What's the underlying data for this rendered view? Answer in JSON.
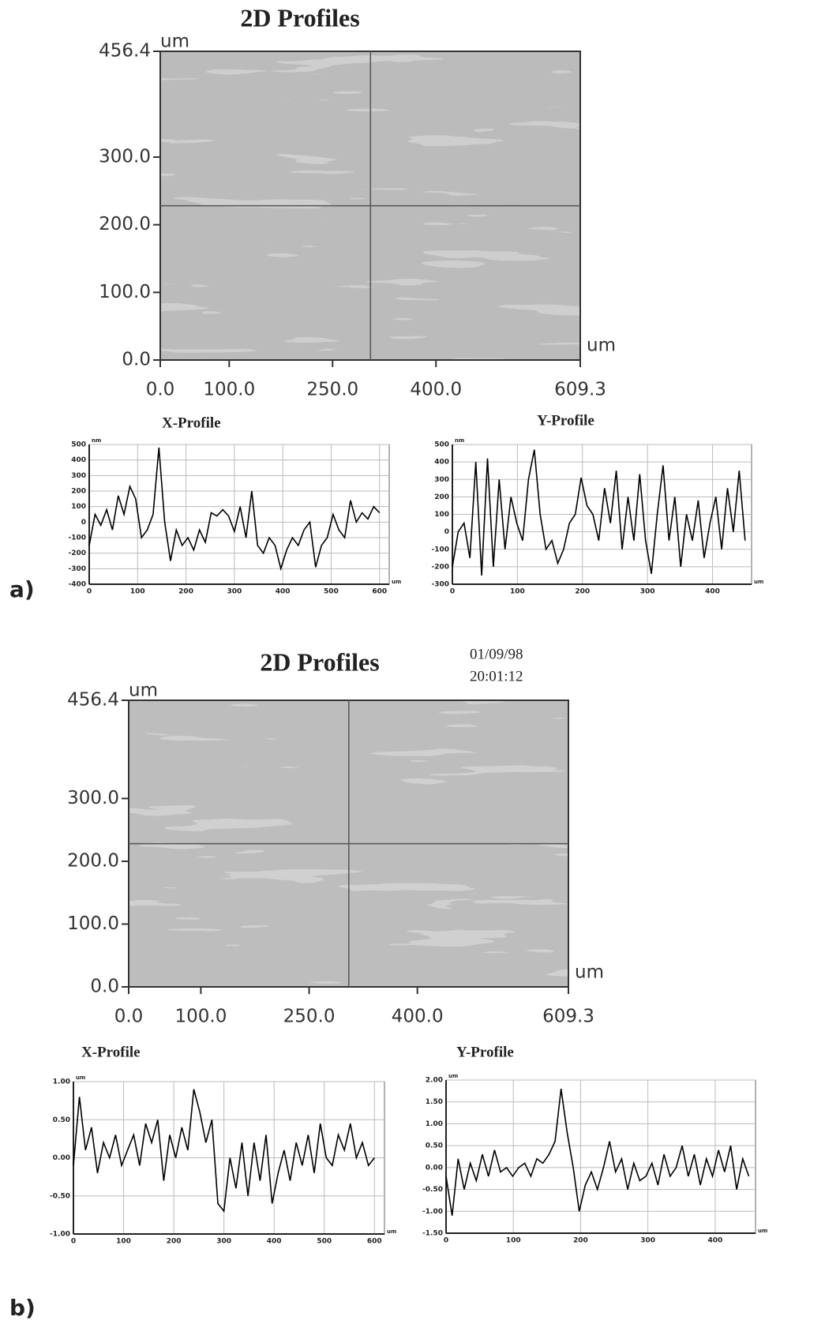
{
  "panel_labels": [
    "a)",
    "b)"
  ],
  "chart_data": [
    {
      "type": "image",
      "title": "2D Profiles",
      "x_unit": "um",
      "y_unit": "um",
      "xlim": [
        0,
        609.3
      ],
      "ylim": [
        0,
        456.4
      ],
      "xticks": [
        {
          "value": 0,
          "label": "0.0"
        },
        {
          "value": 100,
          "label": "100.0"
        },
        {
          "value": 250,
          "label": "250.0"
        },
        {
          "value": 400,
          "label": "400.0"
        },
        {
          "value": 609.3,
          "label": "609.3"
        }
      ],
      "yticks": [
        {
          "value": 0,
          "label": "0.0"
        },
        {
          "value": 100,
          "label": "100.0"
        },
        {
          "value": 200,
          "label": "200.0"
        },
        {
          "value": 300,
          "label": "300.0"
        },
        {
          "value": 456.4,
          "label": "456.4"
        }
      ],
      "cursor": {
        "x": 305,
        "y": 228
      },
      "color": "#8c8c8c"
    },
    {
      "type": "line",
      "title": "X-Profile",
      "x_unit": "um",
      "y_unit": "nm",
      "color": "#000000",
      "grid": true,
      "xlim": [
        0,
        620
      ],
      "ylim": [
        -400,
        500
      ],
      "xticks": [
        0,
        100,
        200,
        300,
        400,
        500,
        600
      ],
      "yticks": [
        -400,
        -300,
        -200,
        -100,
        0,
        100,
        200,
        300,
        400,
        500
      ],
      "x": [
        0,
        12,
        24,
        36,
        48,
        60,
        72,
        84,
        96,
        108,
        120,
        132,
        144,
        156,
        168,
        180,
        192,
        204,
        216,
        228,
        240,
        252,
        264,
        276,
        288,
        300,
        312,
        324,
        336,
        348,
        360,
        372,
        384,
        396,
        408,
        420,
        432,
        444,
        456,
        468,
        480,
        492,
        504,
        516,
        528,
        540,
        552,
        564,
        576,
        588,
        600
      ],
      "values": [
        -150,
        50,
        -20,
        80,
        -50,
        170,
        50,
        230,
        150,
        -100,
        -50,
        50,
        480,
        0,
        -250,
        -50,
        -150,
        -100,
        -180,
        -50,
        -130,
        60,
        40,
        80,
        40,
        -60,
        100,
        -100,
        200,
        -150,
        -200,
        -100,
        -150,
        -300,
        -180,
        -100,
        -150,
        -50,
        0,
        -290,
        -150,
        -100,
        50,
        -50,
        -100,
        140,
        0,
        60,
        20,
        100,
        60
      ]
    },
    {
      "type": "line",
      "title": "Y-Profile",
      "x_unit": "um",
      "y_unit": "nm",
      "color": "#000000",
      "grid": true,
      "xlim": [
        0,
        460
      ],
      "ylim": [
        -300,
        500
      ],
      "xticks": [
        0,
        100,
        200,
        300,
        400
      ],
      "yticks": [
        -300,
        -200,
        -100,
        0,
        100,
        200,
        300,
        400,
        500
      ],
      "x": [
        0,
        9,
        18,
        27,
        36,
        45,
        54,
        63,
        72,
        81,
        90,
        99,
        108,
        117,
        126,
        135,
        144,
        153,
        162,
        171,
        180,
        189,
        198,
        207,
        216,
        225,
        234,
        243,
        252,
        261,
        270,
        279,
        288,
        297,
        306,
        315,
        324,
        333,
        342,
        351,
        360,
        369,
        378,
        387,
        396,
        405,
        414,
        423,
        432,
        441,
        450
      ],
      "values": [
        -200,
        0,
        50,
        -150,
        400,
        -250,
        420,
        -200,
        300,
        -100,
        200,
        50,
        -50,
        300,
        470,
        100,
        -100,
        -50,
        -180,
        -100,
        50,
        100,
        310,
        150,
        100,
        -50,
        250,
        50,
        350,
        -100,
        200,
        -50,
        330,
        -50,
        -240,
        100,
        380,
        -50,
        200,
        -200,
        100,
        -50,
        180,
        -150,
        50,
        200,
        -100,
        250,
        0,
        350,
        -50
      ]
    },
    {
      "type": "image",
      "title": "2D Profiles",
      "x_unit": "um",
      "y_unit": "um",
      "annotations": [
        "01/09/98",
        "20:01:12"
      ],
      "xlim": [
        0,
        609.3
      ],
      "ylim": [
        0,
        456.4
      ],
      "xticks": [
        {
          "value": 0,
          "label": "0.0"
        },
        {
          "value": 100,
          "label": "100.0"
        },
        {
          "value": 250,
          "label": "250.0"
        },
        {
          "value": 400,
          "label": "400.0"
        },
        {
          "value": 609.3,
          "label": "609.3"
        }
      ],
      "yticks": [
        {
          "value": 0,
          "label": "0.0"
        },
        {
          "value": 100,
          "label": "100.0"
        },
        {
          "value": 200,
          "label": "200.0"
        },
        {
          "value": 300,
          "label": "300.0"
        },
        {
          "value": 456.4,
          "label": "456.4"
        }
      ],
      "cursor": {
        "x": 305,
        "y": 228
      },
      "color": "#9a9a9a"
    },
    {
      "type": "line",
      "title": "X-Profile",
      "x_unit": "um",
      "y_unit": "um",
      "color": "#000000",
      "grid": true,
      "xlim": [
        0,
        620
      ],
      "ylim": [
        -1,
        1
      ],
      "xticks": [
        0,
        100,
        200,
        300,
        400,
        500,
        600
      ],
      "yticks": [
        {
          "value": -1,
          "label": "-1.00"
        },
        {
          "value": -0.5,
          "label": "-0.50"
        },
        {
          "value": 0,
          "label": "0.00"
        },
        {
          "value": 0.5,
          "label": "0.50"
        },
        {
          "value": 1,
          "label": "1.00"
        }
      ],
      "x": [
        0,
        12,
        24,
        36,
        48,
        60,
        72,
        84,
        96,
        108,
        120,
        132,
        144,
        156,
        168,
        180,
        192,
        204,
        216,
        228,
        240,
        252,
        264,
        276,
        288,
        300,
        312,
        324,
        336,
        348,
        360,
        372,
        384,
        396,
        408,
        420,
        432,
        444,
        456,
        468,
        480,
        492,
        504,
        516,
        528,
        540,
        552,
        564,
        576,
        588,
        600
      ],
      "values": [
        -0.1,
        0.8,
        0.1,
        0.4,
        -0.2,
        0.2,
        0,
        0.3,
        -0.1,
        0.1,
        0.3,
        -0.1,
        0.45,
        0.2,
        0.5,
        -0.3,
        0.3,
        0,
        0.4,
        0.1,
        0.9,
        0.6,
        0.2,
        0.5,
        -0.6,
        -0.7,
        0,
        -0.4,
        0.2,
        -0.5,
        0.2,
        -0.3,
        0.3,
        -0.6,
        -0.2,
        0.1,
        -0.3,
        0.2,
        -0.1,
        0.3,
        -0.2,
        0.45,
        0,
        -0.1,
        0.3,
        0.1,
        0.45,
        0,
        0.2,
        -0.1,
        0
      ]
    },
    {
      "type": "line",
      "title": "Y-Profile",
      "x_unit": "um",
      "y_unit": "um",
      "color": "#000000",
      "grid": true,
      "xlim": [
        0,
        460
      ],
      "ylim": [
        -1.5,
        2
      ],
      "xticks": [
        0,
        100,
        200,
        300,
        400
      ],
      "yticks": [
        {
          "value": -1.5,
          "label": "-1.50"
        },
        {
          "value": -1,
          "label": "-1.00"
        },
        {
          "value": -0.5,
          "label": "-0.50"
        },
        {
          "value": 0,
          "label": "0.00"
        },
        {
          "value": 0.5,
          "label": "0.50"
        },
        {
          "value": 1,
          "label": "1.00"
        },
        {
          "value": 1.5,
          "label": "1.50"
        },
        {
          "value": 2,
          "label": "2.00"
        }
      ],
      "x": [
        0,
        9,
        18,
        27,
        36,
        45,
        54,
        63,
        72,
        81,
        90,
        99,
        108,
        117,
        126,
        135,
        144,
        153,
        162,
        171,
        180,
        189,
        198,
        207,
        216,
        225,
        234,
        243,
        252,
        261,
        270,
        279,
        288,
        297,
        306,
        315,
        324,
        333,
        342,
        351,
        360,
        369,
        378,
        387,
        396,
        405,
        414,
        423,
        432,
        441,
        450
      ],
      "values": [
        -0.2,
        -1.1,
        0.2,
        -0.5,
        0.1,
        -0.3,
        0.3,
        -0.2,
        0.4,
        -0.1,
        0,
        -0.2,
        0,
        0.1,
        -0.2,
        0.2,
        0.1,
        0.3,
        0.6,
        1.8,
        0.8,
        0,
        -1,
        -0.4,
        -0.1,
        -0.5,
        0,
        0.6,
        -0.1,
        0.2,
        -0.5,
        0.1,
        -0.3,
        -0.2,
        0.1,
        -0.4,
        0.3,
        -0.2,
        0,
        0.5,
        -0.2,
        0.3,
        -0.4,
        0.2,
        -0.2,
        0.4,
        -0.1,
        0.5,
        -0.5,
        0.2,
        -0.2
      ]
    }
  ]
}
